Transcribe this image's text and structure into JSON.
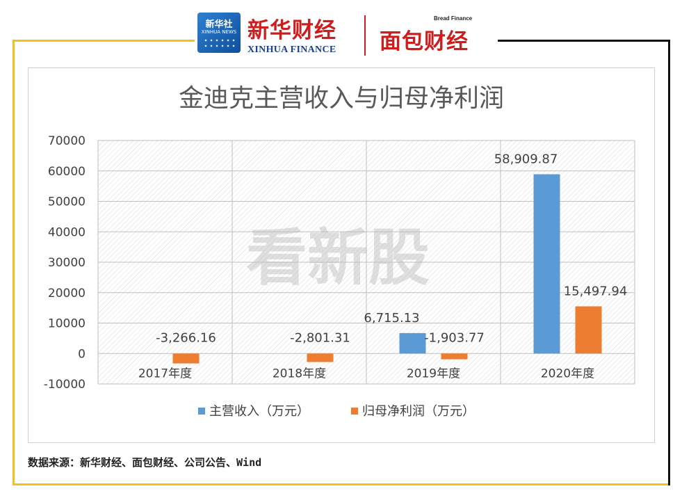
{
  "header": {
    "xinhua_badge_cn": "新华社",
    "xinhua_badge_en": "XINHUA NEWS",
    "xinhua_finance_cn": "新华财经",
    "xinhua_finance_en": "XINHUA FINANCE",
    "bread_finance_en": "Bread Finance",
    "bread_finance_cn": "面包财经"
  },
  "watermark": "看新股",
  "source": "数据来源：新华财经、面包财经、公司公告、Wind",
  "colors": {
    "frame_yellow": "#f2c21a",
    "frame_black": "#111111",
    "revenue_blue": "#5b9bd5",
    "profit_orange": "#ed7d31",
    "brand_red": "#cf1d1d"
  },
  "chart_data": {
    "type": "bar",
    "title": "金迪克主营收入与归母净利润",
    "categories": [
      "2017年度",
      "2018年度",
      "2019年度",
      "2020年度"
    ],
    "series": [
      {
        "name": "主营收入（万元）",
        "color": "#5b9bd5",
        "values": [
          null,
          null,
          6715.13,
          58909.87
        ],
        "labels": [
          "",
          "",
          "6,715.13",
          "58,909.87"
        ]
      },
      {
        "name": "归母净利润（万元）",
        "color": "#ed7d31",
        "values": [
          -3266.16,
          -2801.31,
          -1903.77,
          15497.94
        ],
        "labels": [
          "-3,266.16",
          "-2,801.31",
          "-1,903.77",
          "15,497.94"
        ]
      }
    ],
    "ylim": [
      -10000,
      70000
    ],
    "yticks": [
      -10000,
      0,
      10000,
      20000,
      30000,
      40000,
      50000,
      60000,
      70000
    ],
    "grid": true,
    "legend": "bottom",
    "xlabel": "",
    "ylabel": ""
  }
}
